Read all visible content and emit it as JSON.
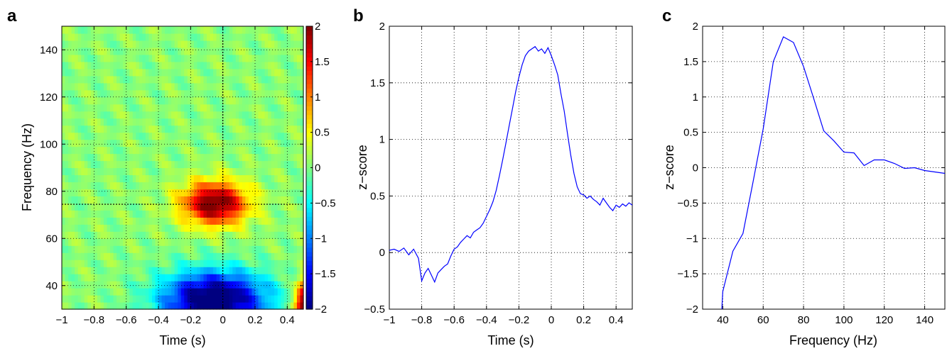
{
  "chart_data": [
    {
      "panel": "a",
      "type": "heatmap",
      "xlabel": "Time (s)",
      "ylabel": "Frequency (Hz)",
      "xlim": [
        -1,
        0.5
      ],
      "ylim": [
        30,
        150
      ],
      "x_ticks": [
        -1,
        -0.8,
        -0.6,
        -0.4,
        -0.2,
        0,
        0.2,
        0.4
      ],
      "x_tick_labels": [
        "−1",
        "−0.8",
        "−0.6",
        "−0.4",
        "−0.2",
        "0",
        "0.2",
        "0.4"
      ],
      "y_ticks": [
        40,
        60,
        80,
        100,
        120,
        140
      ],
      "y_tick_labels": [
        "40",
        "60",
        "80",
        "100",
        "120",
        "140"
      ],
      "colorbar": {
        "range": [
          -2,
          2
        ],
        "ticks": [
          -2,
          -1.5,
          -1,
          -0.5,
          0,
          0.5,
          1,
          1.5,
          2
        ],
        "tick_labels": [
          "−2",
          "−1.5",
          "−1",
          "−0.5",
          "0",
          "0.5",
          "1",
          "1.5",
          "2"
        ]
      },
      "crosshair": {
        "time": 0,
        "frequency": 74.5
      },
      "grid": true
    },
    {
      "panel": "b",
      "type": "line",
      "xlabel": "Time (s)",
      "ylabel": "z−score",
      "xlim": [
        -1,
        0.5
      ],
      "ylim": [
        -0.5,
        2
      ],
      "x_ticks": [
        -1,
        -0.8,
        -0.6,
        -0.4,
        -0.2,
        0,
        0.2,
        0.4
      ],
      "x_tick_labels": [
        "−1",
        "−0.8",
        "−0.6",
        "−0.4",
        "−0.2",
        "0",
        "0.2",
        "0.4"
      ],
      "y_ticks": [
        -0.5,
        0,
        0.5,
        1,
        1.5,
        2
      ],
      "y_tick_labels": [
        "−0.5",
        "0",
        "0.5",
        "1",
        "1.5",
        "2"
      ],
      "grid": true,
      "color": "#0000ff",
      "x": [
        -1,
        -0.97,
        -0.94,
        -0.91,
        -0.88,
        -0.85,
        -0.82,
        -0.8,
        -0.78,
        -0.76,
        -0.74,
        -0.72,
        -0.7,
        -0.68,
        -0.66,
        -0.64,
        -0.62,
        -0.6,
        -0.58,
        -0.56,
        -0.54,
        -0.52,
        -0.5,
        -0.48,
        -0.46,
        -0.44,
        -0.42,
        -0.4,
        -0.38,
        -0.36,
        -0.34,
        -0.32,
        -0.3,
        -0.28,
        -0.26,
        -0.24,
        -0.22,
        -0.2,
        -0.18,
        -0.16,
        -0.14,
        -0.12,
        -0.1,
        -0.08,
        -0.06,
        -0.04,
        -0.02,
        0,
        0.02,
        0.04,
        0.06,
        0.08,
        0.1,
        0.12,
        0.14,
        0.16,
        0.18,
        0.2,
        0.22,
        0.24,
        0.26,
        0.28,
        0.3,
        0.32,
        0.34,
        0.36,
        0.38,
        0.4,
        0.42,
        0.44,
        0.46,
        0.48,
        0.5
      ],
      "y": [
        0.02,
        0.03,
        0.01,
        0.04,
        -0.02,
        0.03,
        -0.05,
        -0.25,
        -0.18,
        -0.14,
        -0.2,
        -0.26,
        -0.18,
        -0.15,
        -0.12,
        -0.1,
        -0.03,
        0.03,
        0.05,
        0.09,
        0.12,
        0.15,
        0.13,
        0.18,
        0.2,
        0.22,
        0.26,
        0.32,
        0.38,
        0.45,
        0.55,
        0.68,
        0.82,
        0.97,
        1.12,
        1.27,
        1.42,
        1.55,
        1.66,
        1.74,
        1.78,
        1.8,
        1.82,
        1.78,
        1.8,
        1.76,
        1.81,
        1.74,
        1.66,
        1.57,
        1.4,
        1.25,
        1.05,
        0.86,
        0.7,
        0.58,
        0.52,
        0.51,
        0.48,
        0.5,
        0.47,
        0.45,
        0.42,
        0.48,
        0.44,
        0.4,
        0.37,
        0.42,
        0.4,
        0.43,
        0.41,
        0.44,
        0.42
      ]
    },
    {
      "panel": "c",
      "type": "line",
      "xlabel": "Frequency (Hz)",
      "ylabel": "z−score",
      "xlim": [
        30,
        150
      ],
      "ylim": [
        -2,
        2
      ],
      "x_ticks": [
        40,
        60,
        80,
        100,
        120,
        140
      ],
      "x_tick_labels": [
        "40",
        "60",
        "80",
        "100",
        "120",
        "140"
      ],
      "y_ticks": [
        -2,
        -1.5,
        -1,
        -0.5,
        0,
        0.5,
        1,
        1.5,
        2
      ],
      "y_tick_labels": [
        "−2",
        "−1.5",
        "−1",
        "−0.5",
        "0",
        "0.5",
        "1",
        "1.5",
        "2"
      ],
      "grid": true,
      "color": "#0000ff",
      "x": [
        39.5,
        40,
        45,
        50,
        55,
        60,
        65,
        70,
        75,
        80,
        85,
        90,
        95,
        100,
        105,
        110,
        115,
        120,
        125,
        130,
        135,
        140,
        145,
        150
      ],
      "y": [
        -2.0,
        -1.75,
        -1.18,
        -0.93,
        -0.2,
        0.55,
        1.5,
        1.85,
        1.77,
        1.43,
        0.98,
        0.52,
        0.38,
        0.22,
        0.21,
        0.03,
        0.11,
        0.11,
        0.06,
        -0.01,
        0.0,
        -0.04,
        -0.06,
        -0.08
      ]
    }
  ]
}
